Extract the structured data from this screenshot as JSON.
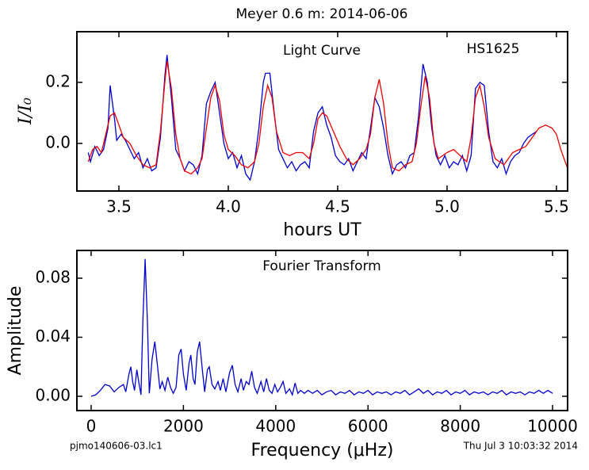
{
  "chart_data": [
    {
      "type": "line",
      "title": "Meyer 0.6 m:  2014-06-06",
      "annotations": [
        "Light Curve",
        "HS1625"
      ],
      "xlabel": "hours UT",
      "ylabel": "I/I₀",
      "xlim": [
        3.308,
        5.551
      ],
      "ylim": [
        -0.156,
        0.366
      ],
      "xticks": [
        3.5,
        {
          "value": 4,
          "label": "4.0"
        },
        4.5,
        {
          "value": 5,
          "label": "5.0"
        },
        5.5
      ],
      "yticks": [
        {
          "value": 0,
          "label": "0.0"
        },
        0.2
      ],
      "series": [
        {
          "color": "#0000cc",
          "x": [
            3.36,
            3.37,
            3.39,
            3.41,
            3.43,
            3.45,
            3.46,
            3.48,
            3.49,
            3.51,
            3.53,
            3.55,
            3.57,
            3.59,
            3.61,
            3.63,
            3.65,
            3.67,
            3.69,
            3.71,
            3.72,
            3.74,
            3.76,
            3.78,
            3.8,
            3.82,
            3.84,
            3.86,
            3.88,
            3.9,
            3.92,
            3.94,
            3.96,
            3.98,
            4.0,
            4.02,
            4.04,
            4.06,
            4.08,
            4.1,
            4.12,
            4.14,
            4.16,
            4.17,
            4.19,
            4.21,
            4.23,
            4.25,
            4.27,
            4.29,
            4.31,
            4.33,
            4.35,
            4.37,
            4.39,
            4.41,
            4.43,
            4.45,
            4.47,
            4.49,
            4.51,
            4.53,
            4.55,
            4.57,
            4.59,
            4.61,
            4.63,
            4.65,
            4.67,
            4.69,
            4.71,
            4.73,
            4.75,
            4.77,
            4.79,
            4.81,
            4.83,
            4.85,
            4.87,
            4.89,
            4.91,
            4.93,
            4.95,
            4.97,
            4.99,
            5.01,
            5.03,
            5.05,
            5.07,
            5.09,
            5.11,
            5.13,
            5.15,
            5.17,
            5.19,
            5.21,
            5.23,
            5.25,
            5.27,
            5.29,
            5.31,
            5.33,
            5.35,
            5.37,
            5.39,
            5.41
          ],
          "values": [
            -0.03,
            -0.06,
            -0.01,
            -0.04,
            -0.02,
            0.05,
            0.19,
            0.08,
            0.01,
            0.03,
            0.01,
            -0.02,
            -0.05,
            -0.03,
            -0.08,
            -0.05,
            -0.09,
            -0.08,
            0.02,
            0.22,
            0.29,
            0.15,
            -0.02,
            -0.05,
            -0.09,
            -0.06,
            -0.07,
            -0.1,
            -0.04,
            0.13,
            0.17,
            0.2,
            0.1,
            0.0,
            -0.05,
            -0.03,
            -0.08,
            -0.04,
            -0.1,
            -0.12,
            -0.06,
            0.05,
            0.2,
            0.23,
            0.23,
            0.1,
            -0.02,
            -0.05,
            -0.08,
            -0.06,
            -0.09,
            -0.07,
            -0.06,
            -0.08,
            0.04,
            0.1,
            0.12,
            0.06,
            0.02,
            -0.04,
            -0.06,
            -0.07,
            -0.05,
            -0.09,
            -0.06,
            -0.03,
            -0.05,
            0.05,
            0.15,
            0.12,
            0.05,
            -0.04,
            -0.1,
            -0.07,
            -0.06,
            -0.08,
            -0.04,
            -0.03,
            0.09,
            0.26,
            0.2,
            0.05,
            -0.04,
            -0.07,
            -0.04,
            -0.08,
            -0.06,
            -0.07,
            -0.04,
            -0.09,
            -0.04,
            0.18,
            0.2,
            0.19,
            0.04,
            -0.06,
            -0.08,
            -0.05,
            -0.1,
            -0.06,
            -0.04,
            -0.03,
            0.0,
            0.02,
            0.03,
            0.04
          ]
        },
        {
          "color": "#ee0000",
          "x": [
            3.36,
            3.38,
            3.4,
            3.42,
            3.44,
            3.46,
            3.48,
            3.5,
            3.52,
            3.55,
            3.58,
            3.61,
            3.64,
            3.67,
            3.69,
            3.71,
            3.72,
            3.74,
            3.76,
            3.78,
            3.8,
            3.83,
            3.86,
            3.88,
            3.9,
            3.92,
            3.94,
            3.96,
            3.98,
            4.0,
            4.03,
            4.06,
            4.09,
            4.12,
            4.14,
            4.16,
            4.18,
            4.2,
            4.22,
            4.25,
            4.28,
            4.31,
            4.34,
            4.37,
            4.39,
            4.41,
            4.43,
            4.45,
            4.48,
            4.51,
            4.54,
            4.57,
            4.6,
            4.63,
            4.65,
            4.67,
            4.69,
            4.71,
            4.73,
            4.75,
            4.78,
            4.81,
            4.84,
            4.86,
            4.88,
            4.9,
            4.92,
            4.94,
            4.96,
            5.0,
            5.03,
            5.06,
            5.09,
            5.11,
            5.13,
            5.15,
            5.17,
            5.19,
            5.22,
            5.26,
            5.3,
            5.33,
            5.36,
            5.39,
            5.42,
            5.45,
            5.48,
            5.5,
            5.52,
            5.55
          ],
          "values": [
            -0.06,
            -0.02,
            -0.01,
            -0.03,
            0.03,
            0.09,
            0.1,
            0.06,
            0.02,
            0.0,
            -0.04,
            -0.07,
            -0.08,
            -0.07,
            0.04,
            0.2,
            0.27,
            0.18,
            0.03,
            -0.05,
            -0.09,
            -0.1,
            -0.08,
            -0.05,
            0.05,
            0.15,
            0.19,
            0.14,
            0.03,
            -0.02,
            -0.04,
            -0.07,
            -0.08,
            -0.06,
            0.0,
            0.12,
            0.19,
            0.15,
            0.04,
            -0.03,
            -0.04,
            -0.03,
            -0.03,
            -0.05,
            0.0,
            0.08,
            0.1,
            0.09,
            0.04,
            -0.01,
            -0.05,
            -0.07,
            -0.05,
            -0.02,
            0.03,
            0.15,
            0.21,
            0.13,
            0.0,
            -0.08,
            -0.09,
            -0.07,
            -0.06,
            0.0,
            0.12,
            0.22,
            0.15,
            0.0,
            -0.05,
            -0.03,
            -0.02,
            -0.04,
            -0.06,
            0.02,
            0.15,
            0.19,
            0.12,
            0.02,
            -0.05,
            -0.07,
            -0.03,
            -0.02,
            -0.01,
            0.02,
            0.05,
            0.06,
            0.05,
            0.03,
            -0.02,
            -0.08
          ]
        }
      ]
    },
    {
      "type": "line",
      "title": "Fourier Transform",
      "xlabel": "Frequency (μHz)",
      "ylabel": "Amplitude",
      "xlim": [
        -309,
        10326
      ],
      "ylim": [
        -0.00966,
        0.0988
      ],
      "xticks": [
        0,
        2000,
        4000,
        6000,
        8000,
        10000
      ],
      "yticks": [
        {
          "value": 0,
          "label": "0.00"
        },
        0.04,
        0.08
      ],
      "series": [
        {
          "color": "#0000cc",
          "x": [
            0,
            100,
            200,
            300,
            400,
            500,
            600,
            700,
            750,
            820,
            860,
            900,
            940,
            990,
            1030,
            1080,
            1120,
            1170,
            1220,
            1260,
            1320,
            1380,
            1440,
            1490,
            1540,
            1600,
            1660,
            1720,
            1780,
            1840,
            1900,
            1950,
            2000,
            2060,
            2120,
            2160,
            2210,
            2250,
            2300,
            2350,
            2410,
            2460,
            2520,
            2560,
            2620,
            2680,
            2750,
            2800,
            2860,
            2920,
            3000,
            3060,
            3120,
            3180,
            3250,
            3300,
            3360,
            3420,
            3480,
            3540,
            3600,
            3680,
            3740,
            3800,
            3860,
            3920,
            3980,
            4040,
            4100,
            4160,
            4220,
            4300,
            4360,
            4420,
            4480,
            4540,
            4620,
            4700,
            4800,
            4900,
            5000,
            5100,
            5200,
            5300,
            5400,
            5500,
            5600,
            5700,
            5800,
            5900,
            6000,
            6100,
            6200,
            6300,
            6400,
            6500,
            6600,
            6700,
            6800,
            6900,
            7000,
            7100,
            7200,
            7300,
            7400,
            7500,
            7600,
            7700,
            7800,
            7900,
            8000,
            8100,
            8200,
            8300,
            8400,
            8500,
            8600,
            8700,
            8800,
            8900,
            9000,
            9100,
            9200,
            9300,
            9400,
            9500,
            9600,
            9700,
            9800,
            9900,
            10000
          ],
          "values": [
            0.0,
            0.001,
            0.004,
            0.008,
            0.007,
            0.003,
            0.006,
            0.008,
            0.003,
            0.015,
            0.02,
            0.01,
            0.004,
            0.018,
            0.01,
            0.001,
            0.05,
            0.093,
            0.05,
            0.002,
            0.025,
            0.037,
            0.02,
            0.005,
            0.01,
            0.004,
            0.013,
            0.006,
            0.002,
            0.006,
            0.028,
            0.032,
            0.015,
            0.004,
            0.022,
            0.028,
            0.012,
            0.008,
            0.03,
            0.037,
            0.018,
            0.003,
            0.018,
            0.02,
            0.008,
            0.005,
            0.01,
            0.004,
            0.012,
            0.003,
            0.016,
            0.021,
            0.008,
            0.003,
            0.012,
            0.004,
            0.01,
            0.008,
            0.017,
            0.006,
            0.002,
            0.01,
            0.003,
            0.012,
            0.004,
            0.002,
            0.008,
            0.003,
            0.006,
            0.01,
            0.002,
            0.005,
            0.001,
            0.009,
            0.002,
            0.004,
            0.002,
            0.004,
            0.002,
            0.004,
            0.001,
            0.003,
            0.004,
            0.001,
            0.003,
            0.002,
            0.004,
            0.001,
            0.003,
            0.002,
            0.004,
            0.001,
            0.003,
            0.002,
            0.003,
            0.001,
            0.003,
            0.002,
            0.004,
            0.001,
            0.003,
            0.005,
            0.002,
            0.004,
            0.001,
            0.003,
            0.002,
            0.004,
            0.001,
            0.003,
            0.002,
            0.004,
            0.001,
            0.003,
            0.002,
            0.003,
            0.001,
            0.003,
            0.002,
            0.004,
            0.001,
            0.003,
            0.002,
            0.003,
            0.001,
            0.003,
            0.002,
            0.004,
            0.002,
            0.004,
            0.002
          ]
        }
      ]
    }
  ],
  "footer": {
    "left": "pjmo140606-03.lc1",
    "right": "Thu Jul  3 10:03:32 2014"
  }
}
